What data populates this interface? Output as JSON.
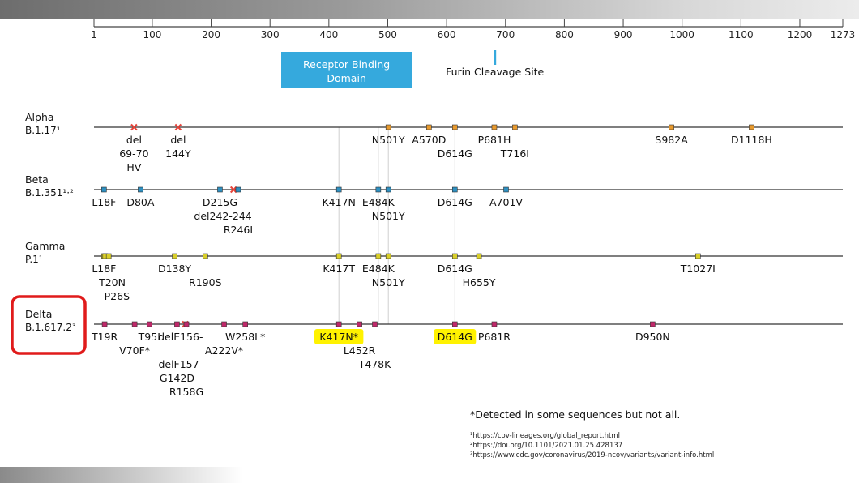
{
  "axis": {
    "ticks": [
      {
        "label": "1",
        "pos": 1
      },
      {
        "label": "100",
        "pos": 100
      },
      {
        "label": "200",
        "pos": 200
      },
      {
        "label": "300",
        "pos": 300
      },
      {
        "label": "400",
        "pos": 400
      },
      {
        "label": "500",
        "pos": 500
      },
      {
        "label": "600",
        "pos": 600
      },
      {
        "label": "700",
        "pos": 700
      },
      {
        "label": "800",
        "pos": 800
      },
      {
        "label": "900",
        "pos": 900
      },
      {
        "label": "1000",
        "pos": 1000
      },
      {
        "label": "1100",
        "pos": 1100
      },
      {
        "label": "1200",
        "pos": 1200
      },
      {
        "label": "1273",
        "pos": 1273
      }
    ],
    "min": 1,
    "max": 1273
  },
  "domains": {
    "rbd": {
      "line1": "Receptor Binding",
      "line2": "Domain",
      "start": 319,
      "end": 541,
      "color": "#35a9dd"
    },
    "furin": {
      "label": "Furin Cleavage Site",
      "pos": 682,
      "color": "#35a9dd"
    }
  },
  "variants": [
    {
      "name_line1": "Alpha",
      "name_line2": "B.1.17¹",
      "color": "#e89a2d",
      "highlight_box": false,
      "markers": [
        {
          "pos": 69,
          "type": "x"
        },
        {
          "pos": 144,
          "type": "x"
        },
        {
          "pos": 501,
          "type": "sq"
        },
        {
          "pos": 570,
          "type": "sq"
        },
        {
          "pos": 614,
          "type": "sq"
        },
        {
          "pos": 681,
          "type": "sq"
        },
        {
          "pos": 716,
          "type": "sq"
        },
        {
          "pos": 982,
          "type": "sq"
        },
        {
          "pos": 1118,
          "type": "sq"
        }
      ],
      "labels": [
        {
          "text": "del",
          "pos": 69,
          "row": 0
        },
        {
          "text": "69-70",
          "pos": 69,
          "row": 1
        },
        {
          "text": "HV",
          "pos": 69,
          "row": 2
        },
        {
          "text": "del",
          "pos": 144,
          "row": 0
        },
        {
          "text": "144Y",
          "pos": 144,
          "row": 1
        },
        {
          "text": "N501Y",
          "pos": 501,
          "row": 0
        },
        {
          "text": "A570D",
          "pos": 570,
          "row": 0
        },
        {
          "text": "D614G",
          "pos": 614,
          "row": 1
        },
        {
          "text": "P681H",
          "pos": 681,
          "row": 0
        },
        {
          "text": "T716I",
          "pos": 716,
          "row": 1
        },
        {
          "text": "S982A",
          "pos": 982,
          "row": 0
        },
        {
          "text": "D1118H",
          "pos": 1118,
          "row": 0
        }
      ]
    },
    {
      "name_line1": "Beta",
      "name_line2": "B.1.351¹·²",
      "color": "#2d8fc0",
      "highlight_box": false,
      "markers": [
        {
          "pos": 18,
          "type": "sq"
        },
        {
          "pos": 80,
          "type": "sq"
        },
        {
          "pos": 215,
          "type": "sq"
        },
        {
          "pos": 238,
          "type": "x"
        },
        {
          "pos": 246,
          "type": "sq"
        },
        {
          "pos": 417,
          "type": "sq"
        },
        {
          "pos": 484,
          "type": "sq"
        },
        {
          "pos": 501,
          "type": "sq"
        },
        {
          "pos": 614,
          "type": "sq"
        },
        {
          "pos": 701,
          "type": "sq"
        }
      ],
      "labels": [
        {
          "text": "L18F",
          "pos": 18,
          "row": 0
        },
        {
          "text": "D80A",
          "pos": 80,
          "row": 0
        },
        {
          "text": "D215G",
          "pos": 215,
          "row": 0
        },
        {
          "text": "del242-244",
          "pos": 220,
          "row": 1
        },
        {
          "text": "R246I",
          "pos": 246,
          "row": 2
        },
        {
          "text": "K417N",
          "pos": 417,
          "row": 0
        },
        {
          "text": "E484K",
          "pos": 484,
          "row": 0
        },
        {
          "text": "N501Y",
          "pos": 501,
          "row": 1
        },
        {
          "text": "D614G",
          "pos": 614,
          "row": 0
        },
        {
          "text": "A701V",
          "pos": 701,
          "row": 0
        }
      ]
    },
    {
      "name_line1": "Gamma",
      "name_line2": "P.1¹",
      "color": "#d9cf2a",
      "highlight_box": false,
      "markers": [
        {
          "pos": 18,
          "type": "sq"
        },
        {
          "pos": 20,
          "type": "sq"
        },
        {
          "pos": 26,
          "type": "sq"
        },
        {
          "pos": 138,
          "type": "sq"
        },
        {
          "pos": 190,
          "type": "sq"
        },
        {
          "pos": 417,
          "type": "sq"
        },
        {
          "pos": 484,
          "type": "sq"
        },
        {
          "pos": 501,
          "type": "sq"
        },
        {
          "pos": 614,
          "type": "sq"
        },
        {
          "pos": 655,
          "type": "sq"
        },
        {
          "pos": 1027,
          "type": "sq"
        }
      ],
      "labels": [
        {
          "text": "L18F",
          "pos": 18,
          "row": 0
        },
        {
          "text": "T20N",
          "pos": 32,
          "row": 1
        },
        {
          "text": "P26S",
          "pos": 40,
          "row": 2
        },
        {
          "text": "D138Y",
          "pos": 138,
          "row": 0
        },
        {
          "text": "R190S",
          "pos": 190,
          "row": 1
        },
        {
          "text": "K417T",
          "pos": 417,
          "row": 0
        },
        {
          "text": "E484K",
          "pos": 484,
          "row": 0
        },
        {
          "text": "N501Y",
          "pos": 501,
          "row": 1
        },
        {
          "text": "D614G",
          "pos": 614,
          "row": 0
        },
        {
          "text": "H655Y",
          "pos": 655,
          "row": 1
        },
        {
          "text": "T1027I",
          "pos": 1027,
          "row": 0
        }
      ]
    },
    {
      "name_line1": "Delta",
      "name_line2": "B.1.617.2³",
      "color": "#c0286a",
      "highlight_box": true,
      "markers": [
        {
          "pos": 19,
          "type": "sq"
        },
        {
          "pos": 70,
          "type": "sq"
        },
        {
          "pos": 95,
          "type": "sq"
        },
        {
          "pos": 142,
          "type": "sq"
        },
        {
          "pos": 156,
          "type": "x"
        },
        {
          "pos": 158,
          "type": "sq"
        },
        {
          "pos": 222,
          "type": "sq"
        },
        {
          "pos": 258,
          "type": "sq"
        },
        {
          "pos": 417,
          "type": "sq"
        },
        {
          "pos": 452,
          "type": "sq"
        },
        {
          "pos": 478,
          "type": "sq"
        },
        {
          "pos": 614,
          "type": "sq"
        },
        {
          "pos": 681,
          "type": "sq"
        },
        {
          "pos": 950,
          "type": "sq"
        }
      ],
      "labels": [
        {
          "text": "T19R",
          "pos": 19,
          "row": 0
        },
        {
          "text": "V70F*",
          "pos": 70,
          "row": 1
        },
        {
          "text": "T95I",
          "pos": 95,
          "row": 0
        },
        {
          "text": "delE156-",
          "pos": 148,
          "row": 0
        },
        {
          "text": "delF157-",
          "pos": 148,
          "row": 2
        },
        {
          "text": "G142D",
          "pos": 142,
          "row": 3
        },
        {
          "text": "R158G",
          "pos": 158,
          "row": 4
        },
        {
          "text": "A222V*",
          "pos": 222,
          "row": 1
        },
        {
          "text": "W258L*",
          "pos": 258,
          "row": 0
        },
        {
          "text": "K417N*",
          "pos": 417,
          "row": 0,
          "highlight": true
        },
        {
          "text": "L452R",
          "pos": 452,
          "row": 1
        },
        {
          "text": "T478K",
          "pos": 478,
          "row": 2
        },
        {
          "text": "D614G",
          "pos": 614,
          "row": 0,
          "highlight": true
        },
        {
          "text": "P681R",
          "pos": 681,
          "row": 0
        },
        {
          "text": "D950N",
          "pos": 950,
          "row": 0
        }
      ]
    }
  ],
  "connectors": [
    417,
    484,
    501,
    614
  ],
  "footnotes": {
    "detected": "*Detected in some sequences but not all.",
    "refs": [
      "¹https://cov-lineages.org/global_report.html",
      "²https://doi.org/10.1101/2021.01.25.428137",
      "³https://www.cdc.gov/coronavirus/2019-ncov/variants/variant-info.html"
    ]
  },
  "colors": {
    "highlight": "#fff200",
    "callout_border": "#e01b1b",
    "axis": "#444444",
    "x_marker": "#e8443a"
  }
}
